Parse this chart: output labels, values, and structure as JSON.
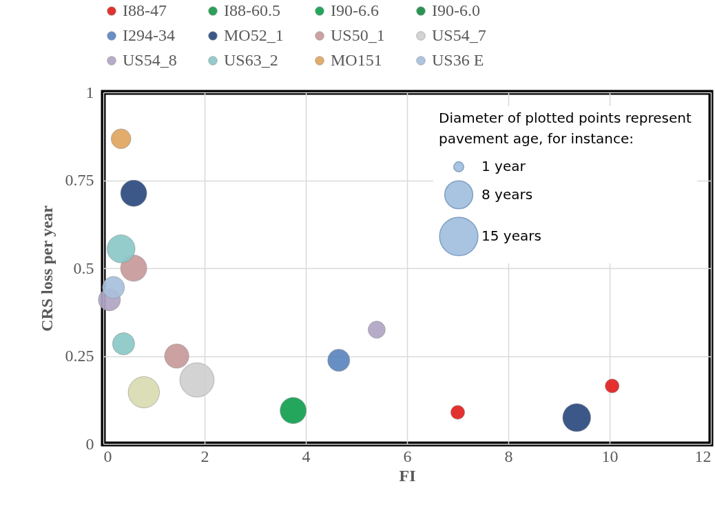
{
  "chart_data": {
    "type": "bubble",
    "xlabel": "FI",
    "ylabel": "CRS loss per year",
    "legend_title": "Diameter of plotted points represent\npavement age, for instance:",
    "size_legend": [
      {
        "value": 1,
        "label": "1 year"
      },
      {
        "value": 8,
        "label": "8 years"
      },
      {
        "value": 15,
        "label": "15 years"
      }
    ],
    "xlim": [
      0,
      12
    ],
    "xticks": [
      0,
      2,
      4,
      6,
      8,
      10,
      12
    ],
    "ylim": [
      0,
      1
    ],
    "yticks": [
      0,
      0.25,
      0.5,
      0.75,
      1
    ],
    "grid": true,
    "legend": "top",
    "series": [
      {
        "name": "I88-47",
        "color": "#e0201e",
        "x": [
          7.0,
          10.05
        ],
        "values": [
          0.09,
          0.165
        ],
        "sizes": [
          2,
          2
        ]
      },
      {
        "name": "I88-60.5",
        "color": "#1a9a4a"
      },
      {
        "name": "I90-6.6",
        "color": "#12a050",
        "x": [
          3.75
        ],
        "values": [
          0.095
        ],
        "sizes": [
          7
        ]
      },
      {
        "name": "I90-6.0",
        "color": "#178c44"
      },
      {
        "name": "I294-34",
        "color": "#5b86c0",
        "x": [
          4.65
        ],
        "values": [
          0.238
        ],
        "sizes": [
          5
        ]
      },
      {
        "name": "MO52_1",
        "color": "#2c4a80",
        "x": [
          0.6,
          9.35
        ],
        "values": [
          0.713,
          0.075
        ],
        "sizes": [
          7,
          8
        ]
      },
      {
        "name": "US50_1",
        "color": "#c89a9a",
        "x": [
          0.6,
          1.45
        ],
        "values": [
          0.5,
          0.25
        ],
        "sizes": [
          7,
          6
        ]
      },
      {
        "name": "US54_7",
        "color": "#d0d0d0",
        "x": [
          1.85
        ],
        "values": [
          0.182
        ],
        "sizes": [
          12
        ]
      },
      {
        "name": "US54_8",
        "color": "#b0a6c4",
        "x": [
          0.12,
          5.4
        ],
        "values": [
          0.41,
          0.325
        ],
        "sizes": [
          5,
          3
        ]
      },
      {
        "name": "US63_2",
        "color": "#8cc8c8",
        "x": [
          0.35,
          0.4
        ],
        "values": [
          0.555,
          0.285
        ],
        "sizes": [
          8,
          5
        ]
      },
      {
        "name": "MO151",
        "color": "#e0a560",
        "x": [
          0.35
        ],
        "values": [
          0.868
        ],
        "sizes": [
          4
        ]
      },
      {
        "name": "US36 E",
        "color": "#a9c0dc",
        "x": [
          0.2
        ],
        "values": [
          0.445
        ],
        "sizes": [
          5
        ]
      },
      {
        "color": "#d8dcb0",
        "x": [
          0.8
        ],
        "values": [
          0.147
        ],
        "sizes": [
          10
        ]
      }
    ]
  }
}
